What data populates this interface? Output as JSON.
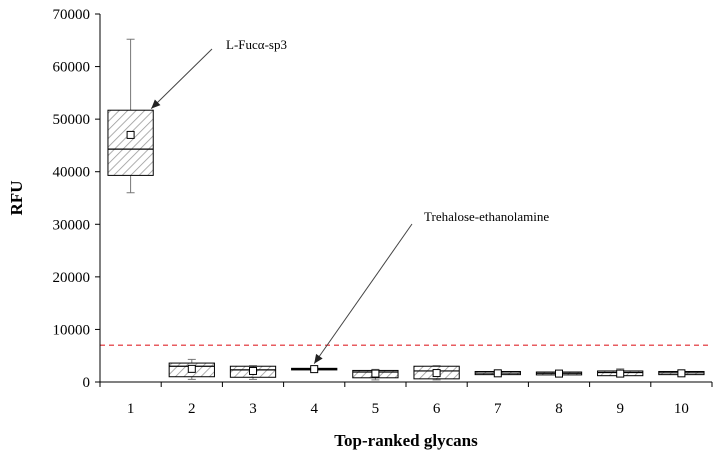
{
  "chart_data": {
    "type": "box",
    "title": "",
    "xlabel": "Top-ranked glycans",
    "ylabel": "RFU",
    "ylim": [
      0,
      70000
    ],
    "yticks": [
      0,
      10000,
      20000,
      30000,
      40000,
      50000,
      60000,
      70000
    ],
    "categories": [
      "1",
      "2",
      "3",
      "4",
      "5",
      "6",
      "7",
      "8",
      "9",
      "10"
    ],
    "boxes": [
      {
        "category": "1",
        "min": 36000,
        "q1": 39300,
        "median": 44300,
        "q3": 51700,
        "max": 65200,
        "mean": 47000
      },
      {
        "category": "2",
        "min": 500,
        "q1": 1000,
        "median": 3000,
        "q3": 3600,
        "max": 4300,
        "mean": 2500
      },
      {
        "category": "3",
        "min": 500,
        "q1": 900,
        "median": 2300,
        "q3": 3000,
        "max": 3100,
        "mean": 2100
      },
      {
        "category": "4",
        "min": 2200,
        "q1": 2300,
        "median": 2500,
        "q3": 2600,
        "max": 2700,
        "mean": 2450
      },
      {
        "category": "5",
        "min": 400,
        "q1": 800,
        "median": 1900,
        "q3": 2200,
        "max": 2400,
        "mean": 1600
      },
      {
        "category": "6",
        "min": 400,
        "q1": 600,
        "median": 2100,
        "q3": 3000,
        "max": 3100,
        "mean": 1700
      },
      {
        "category": "7",
        "min": 1300,
        "q1": 1400,
        "median": 1700,
        "q3": 2000,
        "max": 2100,
        "mean": 1650
      },
      {
        "category": "8",
        "min": 1200,
        "q1": 1350,
        "median": 1650,
        "q3": 1900,
        "max": 2000,
        "mean": 1600
      },
      {
        "category": "9",
        "min": 1000,
        "q1": 1200,
        "median": 1800,
        "q3": 2100,
        "max": 2500,
        "mean": 1600
      },
      {
        "category": "10",
        "min": 1200,
        "q1": 1400,
        "median": 1750,
        "q3": 2000,
        "max": 2100,
        "mean": 1650
      }
    ],
    "threshold": {
      "value": 7000,
      "color": "#e0262b",
      "style": "dashed"
    },
    "annotations": [
      {
        "text": "L-Fucα-sp3",
        "target_category": "1",
        "target_value": 52000
      },
      {
        "text": "Trehalose-ethanolamine",
        "target_category": "4",
        "target_value": 3500
      }
    ],
    "box_fill": "hatched gray",
    "grid": false,
    "legend": "none"
  }
}
